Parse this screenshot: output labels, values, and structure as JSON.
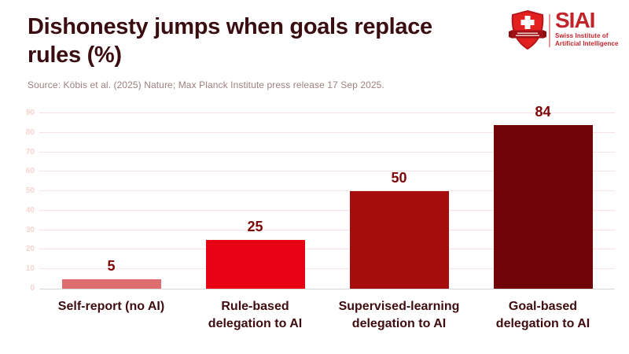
{
  "header": {
    "title": "Dishonesty jumps when goals replace rules (%)",
    "source": "Source: Köbis et al. (2025) Nature; Max Planck Institute press release 17 Sep 2025."
  },
  "logo": {
    "acronym": "SIAI",
    "org_line1": "Swiss Institute of",
    "org_line2": "Artificial Intelligence",
    "shield_icon": "swiss-shield-icon",
    "brand_color": "#c2232a"
  },
  "chart_data": {
    "type": "bar",
    "title": "Dishonesty jumps when goals replace rules (%)",
    "categories": [
      "Self-report (no AI)",
      "Rule-based delegation to AI",
      "Supervised-learning delegation to AI",
      "Goal-based delegation to AI"
    ],
    "category_lines": [
      [
        "Self-report (no AI)"
      ],
      [
        "Rule-based",
        "delegation to AI"
      ],
      [
        "Supervised-learning",
        "delegation to AI"
      ],
      [
        "Goal-based",
        "delegation to AI"
      ]
    ],
    "values": [
      5,
      25,
      50,
      84
    ],
    "bar_colors": [
      "#de6d6f",
      "#e60214",
      "#a50d0d",
      "#6e0408"
    ],
    "xlabel": "",
    "ylabel": "",
    "ylim": [
      0,
      90
    ],
    "yticks": [
      0,
      10,
      20,
      30,
      40,
      50,
      60,
      70,
      80,
      90
    ],
    "grid": true,
    "legend": "none",
    "value_labels_shown": true,
    "colors": {
      "value_label": "#7e0505",
      "category_label": "#3f0d10",
      "gridline": "#f8e3e0",
      "baseline": "#d8d8d8",
      "ytick_label": "#f5d4cf"
    }
  }
}
